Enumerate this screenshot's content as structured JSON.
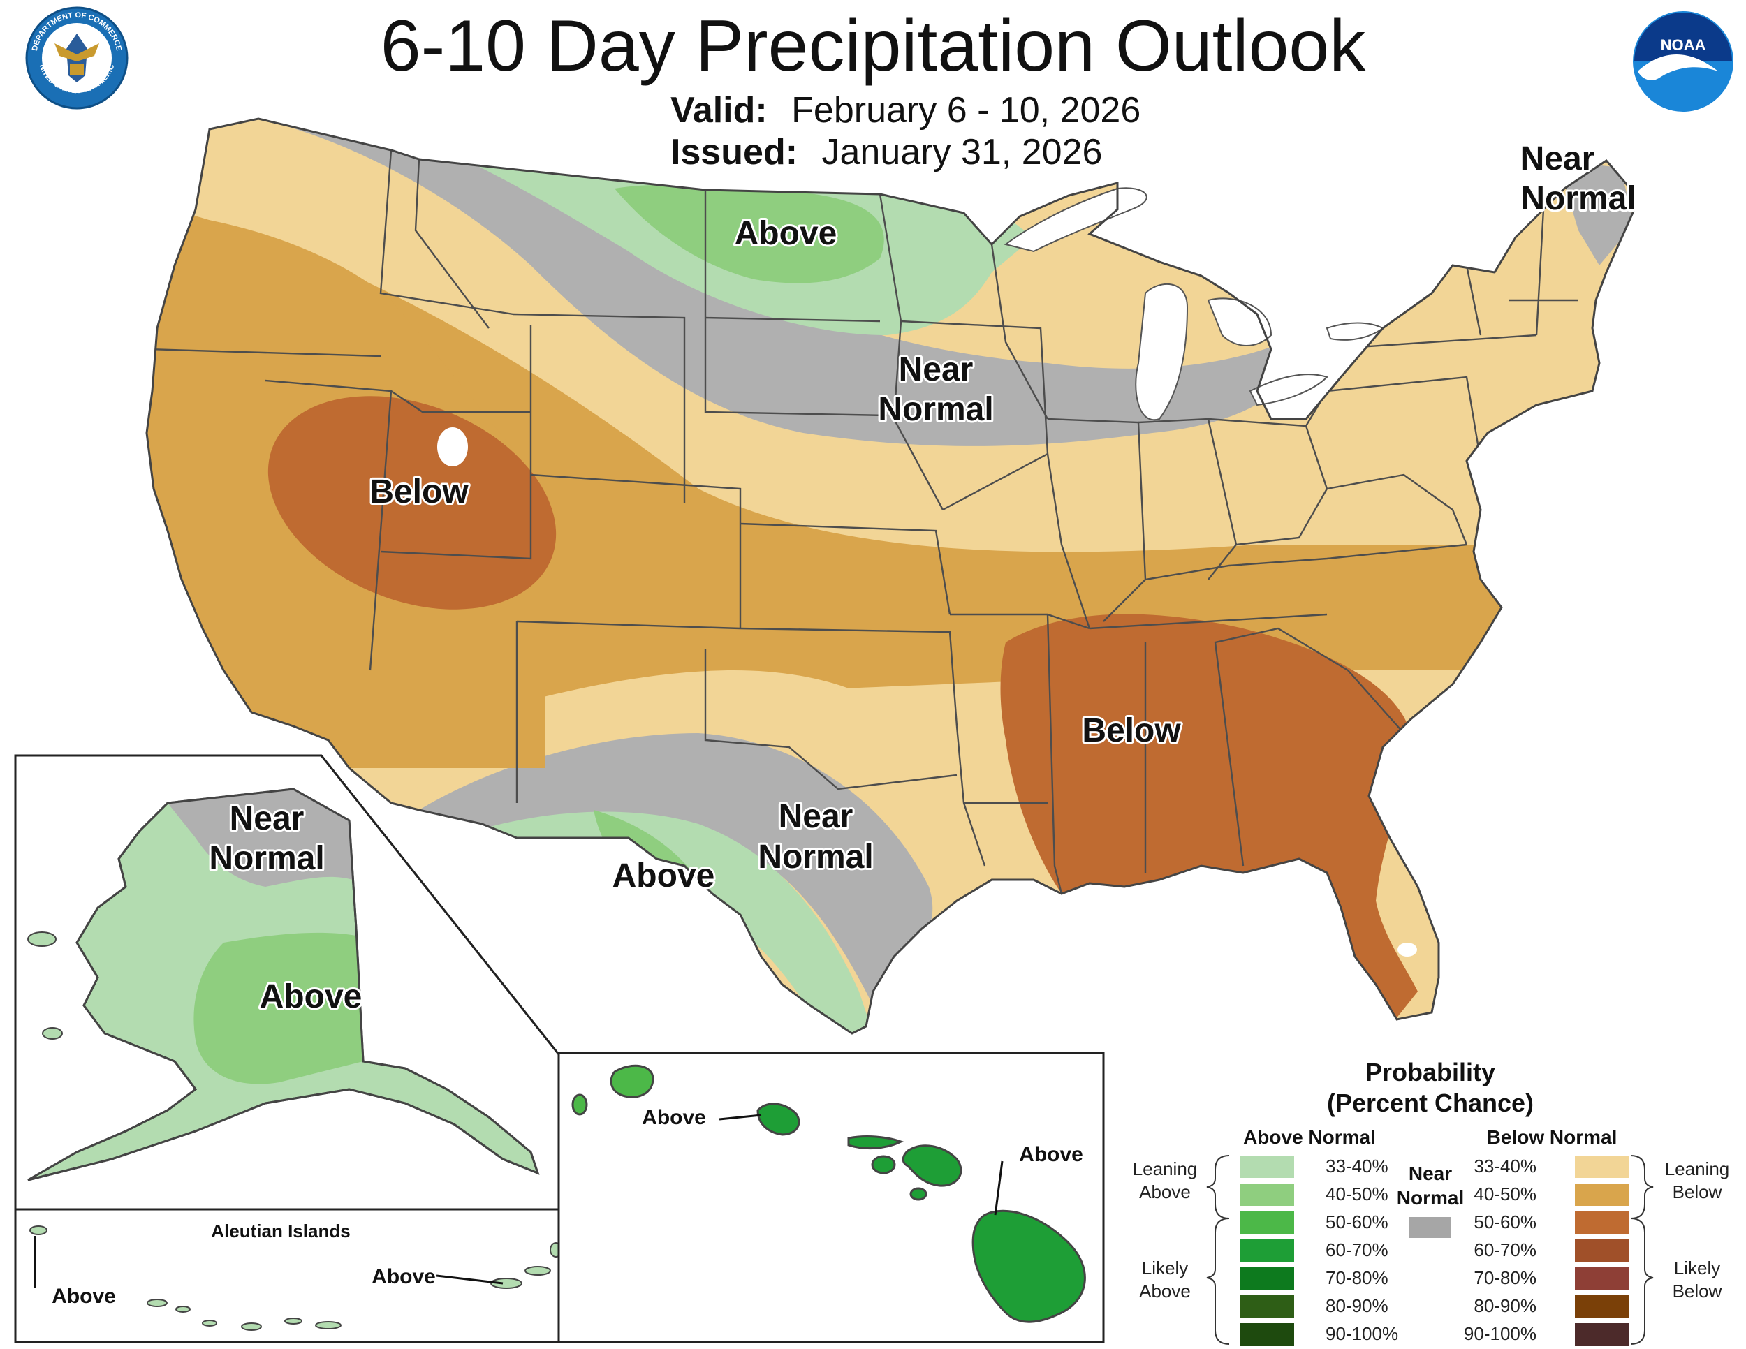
{
  "title": "6-10 Day Precipitation Outlook",
  "valid_label": "Valid:",
  "valid_value": "February 6 - 10, 2026",
  "issued_label": "Issued:",
  "issued_value": "January 31, 2026",
  "logos": {
    "left": "seal-department-of-commerce",
    "left_text_top": "DEPARTMENT OF COMMERCE",
    "left_text_bottom": "UNITED STATES OF AMERICA",
    "right": "noaa-logo",
    "right_text": "NOAA"
  },
  "map_labels": {
    "conus_northeast": [
      "Near",
      "Normal"
    ],
    "conus_north_plains": "Above",
    "conus_midwest": [
      "Near",
      "Normal"
    ],
    "conus_great_basin": "Below",
    "conus_southeast": "Below",
    "conus_south_plains": [
      "Near",
      "Normal"
    ],
    "conus_southwest_texas": "Above",
    "alaska_north": [
      "Near",
      "Normal"
    ],
    "alaska_interior": "Above",
    "aleutians_title": "Aleutian Islands",
    "aleutians_west": "Above",
    "aleutians_east": "Above",
    "hawaii_oahu": "Above",
    "hawaii_big_island": "Above"
  },
  "legend": {
    "title_line1": "Probability",
    "title_line2": "(Percent Chance)",
    "above_header": "Above Normal",
    "below_header": "Below Normal",
    "near_header": [
      "Near",
      "Normal"
    ],
    "leaning_above": [
      "Leaning",
      "Above"
    ],
    "likely_above": [
      "Likely",
      "Above"
    ],
    "leaning_below": [
      "Leaning",
      "Below"
    ],
    "likely_below": [
      "Likely",
      "Below"
    ],
    "ranges": [
      "33-40%",
      "40-50%",
      "50-60%",
      "60-70%",
      "70-80%",
      "80-90%",
      "90-100%"
    ],
    "above_colors": [
      "#b3dcb0",
      "#8fce7f",
      "#4cb848",
      "#1e9e36",
      "#0d7a1e",
      "#2e5e16",
      "#1e4a0e"
    ],
    "below_colors": [
      "#f2d596",
      "#d9a54c",
      "#bf6b31",
      "#a05029",
      "#8e3f36",
      "#7a4008",
      "#4c2a2a"
    ],
    "near_color": "#a6a6a6"
  },
  "colors": {
    "above_33_40": "#b3dcb0",
    "above_40_50": "#8fce7f",
    "above_50_60": "#4cb848",
    "above_60_70": "#1e9e36",
    "near_normal": "#b0b0b0",
    "below_33_40": "#f2d596",
    "below_40_50": "#d9a54c",
    "below_50_60": "#bf6b31",
    "water": "#ffffff",
    "state_lines": "#4d4d4d"
  }
}
